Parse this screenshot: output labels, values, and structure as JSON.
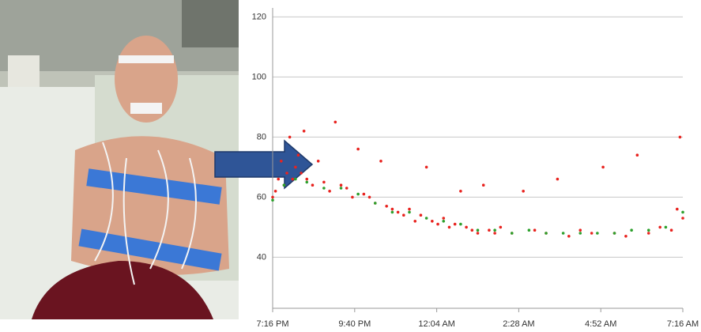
{
  "chart_data": {
    "type": "scatter",
    "xlim": [
      0,
      720
    ],
    "xticks": [
      {
        "value": 0,
        "label": "7:16 PM"
      },
      {
        "value": 144,
        "label": "9:40 PM"
      },
      {
        "value": 288,
        "label": "12:04 AM"
      },
      {
        "value": 432,
        "label": "2:28 AM"
      },
      {
        "value": 576,
        "label": "4:52 AM"
      },
      {
        "value": 720,
        "label": "7:16 AM"
      }
    ],
    "ylim": [
      23,
      123
    ],
    "yticks": [
      40,
      60,
      80,
      100,
      120
    ],
    "grid": true,
    "series": [
      {
        "color": "#e8231f",
        "x": [
          0,
          5,
          10,
          15,
          20,
          25,
          30,
          35,
          40,
          45,
          50,
          55,
          60,
          70,
          80,
          90,
          100,
          110,
          120,
          130,
          140,
          150,
          160,
          170,
          180,
          190,
          200,
          210,
          220,
          230,
          240,
          250,
          260,
          270,
          280,
          290,
          300,
          310,
          320,
          330,
          340,
          350,
          360,
          370,
          380,
          390,
          400,
          420,
          440,
          460,
          480,
          500,
          520,
          540,
          560,
          580,
          600,
          620,
          640,
          660,
          680,
          700,
          710,
          715,
          720
        ],
        "values": [
          60,
          62,
          66,
          72,
          64,
          68,
          80,
          66,
          70,
          74,
          68,
          82,
          66,
          64,
          72,
          65,
          62,
          85,
          64,
          63,
          60,
          76,
          61,
          60,
          58,
          72,
          57,
          56,
          55,
          54,
          56,
          52,
          54,
          70,
          52,
          51,
          53,
          50,
          51,
          62,
          50,
          49,
          48,
          64,
          49,
          48,
          50,
          48,
          62,
          49,
          48,
          66,
          47,
          49,
          48,
          70,
          48,
          47,
          74,
          48,
          50,
          49,
          56,
          80,
          53
        ]
      },
      {
        "color": "#2ca02c",
        "x": [
          0,
          20,
          40,
          60,
          90,
          120,
          150,
          180,
          210,
          240,
          270,
          300,
          330,
          360,
          390,
          420,
          450,
          480,
          510,
          540,
          570,
          600,
          630,
          660,
          690,
          720
        ],
        "values": [
          59,
          64,
          66,
          65,
          63,
          63,
          61,
          58,
          55,
          55,
          53,
          52,
          51,
          49,
          49,
          48,
          49,
          48,
          48,
          48,
          48,
          48,
          49,
          49,
          50,
          55
        ]
      }
    ]
  }
}
